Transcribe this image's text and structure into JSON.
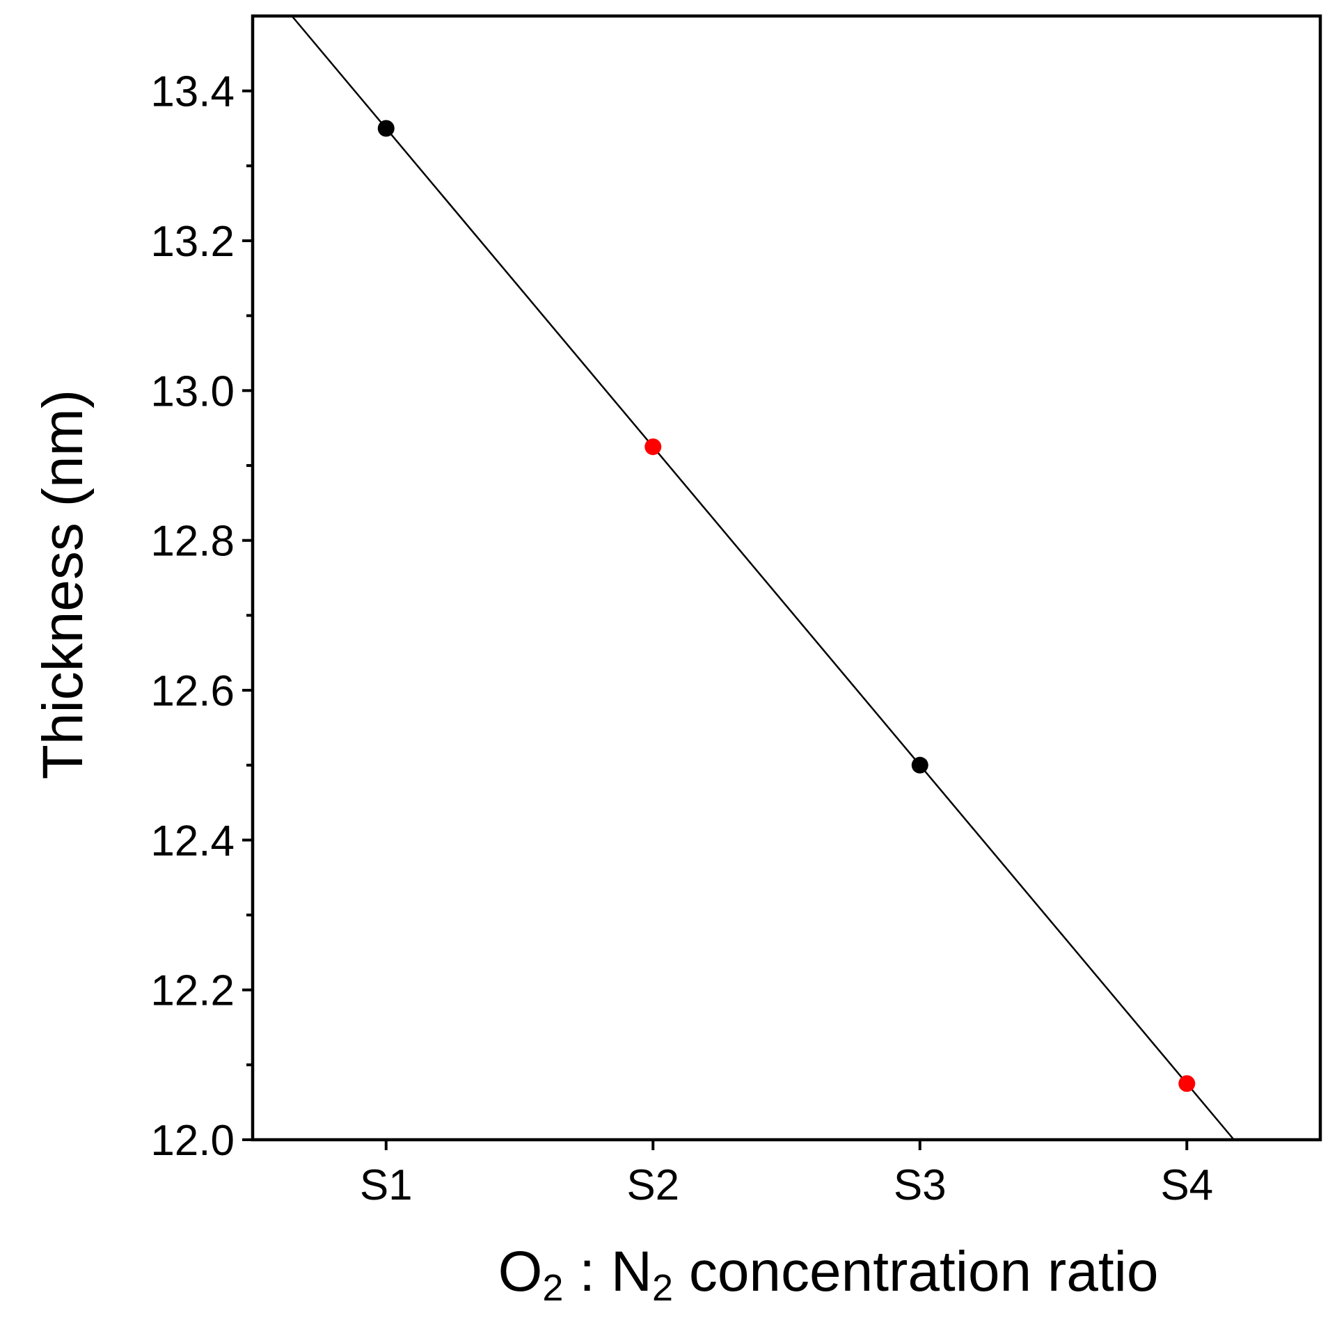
{
  "chart_data": {
    "type": "scatter",
    "title": "",
    "xlabel_parts": {
      "o": "O",
      "o_sub": "2",
      "sep": " : N",
      "n_sub": "2",
      "rest": " concentration ratio"
    },
    "ylabel": "Thickness (nm)",
    "categories": [
      "S1",
      "S2",
      "S3",
      "S4"
    ],
    "x": [
      1,
      2,
      3,
      4
    ],
    "xlim": [
      0.5,
      4.5
    ],
    "ylim": [
      12.0,
      13.5
    ],
    "y_major_ticks": [
      12.0,
      12.2,
      12.4,
      12.6,
      12.8,
      13.0,
      13.2,
      13.4
    ],
    "y_tick_labels": [
      "12.0",
      "12.2",
      "12.4",
      "12.6",
      "12.8",
      "13.0",
      "13.2",
      "13.4"
    ],
    "y_minor_ticks": [
      12.1,
      12.3,
      12.5,
      12.7,
      12.9,
      13.1,
      13.3
    ],
    "points": [
      {
        "label": "S1",
        "x": 1,
        "y": 13.35,
        "color": "#000000"
      },
      {
        "label": "S2",
        "x": 2,
        "y": 12.925,
        "color": "#ff0000"
      },
      {
        "label": "S3",
        "x": 3,
        "y": 12.5,
        "color": "#000000"
      },
      {
        "label": "S4",
        "x": 4,
        "y": 12.075,
        "color": "#ff0000"
      }
    ],
    "fit_line": {
      "slope": -0.425,
      "intercept": 13.775,
      "color": "#000000"
    },
    "grid": false,
    "legend": "none"
  }
}
